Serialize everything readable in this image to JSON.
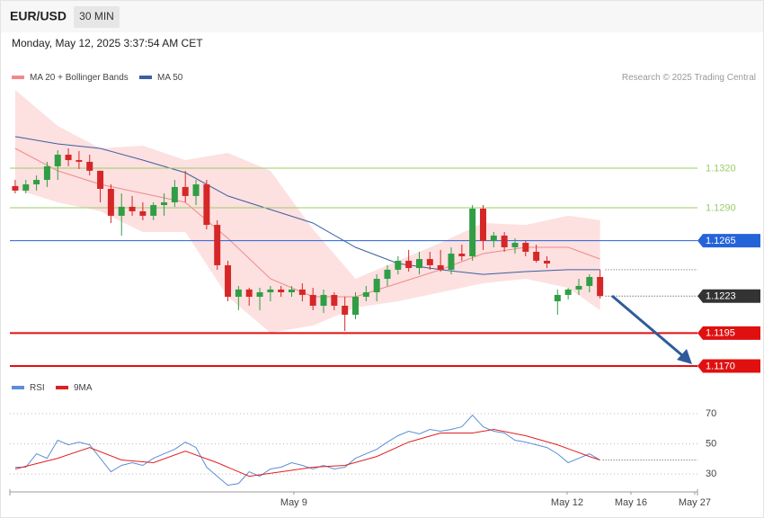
{
  "header": {
    "symbol": "EUR/USD",
    "interval": "30 MIN",
    "timestamp": "Monday, May 12, 2025 3:37:54 AM CET"
  },
  "chart_data": [
    {
      "type": "candlestick",
      "credit": "Research © 2025 Trading Central",
      "up_color": "#2f9e44",
      "down_color": "#d62728",
      "open": [
        1.13064,
        1.1303,
        1.13077,
        1.13111,
        1.13214,
        1.13302,
        1.13261,
        1.13248,
        1.1318,
        1.13043,
        1.12839,
        1.12907,
        1.12873,
        1.12839,
        1.1292,
        1.12941,
        1.13057,
        1.12989,
        1.13077,
        1.1277,
        1.12464,
        1.12225,
        1.1228,
        1.12225,
        1.12259,
        1.1228,
        1.12259,
        1.1228,
        1.12239,
        1.12157,
        1.12239,
        1.12157,
        1.12089,
        1.12225,
        1.12259,
        1.12361,
        1.1243,
        1.12498,
        1.12443,
        1.12511,
        1.12464,
        1.1243,
        1.12552,
        1.12532,
        1.12893,
        1.12648,
        1.12689,
        1.126,
        1.12634,
        1.12566,
        1.12498,
        1.12191,
        1.12239,
        1.1228,
        1.12307,
        1.12375
      ],
      "high": [
        1.13111,
        1.13111,
        1.13145,
        1.13248,
        1.13336,
        1.1335,
        1.1333,
        1.13302,
        1.1318,
        1.13077,
        1.13009,
        1.12989,
        1.12941,
        1.12941,
        1.13009,
        1.13111,
        1.1318,
        1.13111,
        1.13111,
        1.12805,
        1.12498,
        1.12307,
        1.12293,
        1.12293,
        1.12307,
        1.12307,
        1.12307,
        1.12327,
        1.12293,
        1.1228,
        1.12259,
        1.12225,
        1.12259,
        1.12307,
        1.12395,
        1.12464,
        1.12532,
        1.1258,
        1.12566,
        1.12566,
        1.1258,
        1.126,
        1.1262,
        1.1292,
        1.1292,
        1.12716,
        1.12716,
        1.12668,
        1.12648,
        1.1262,
        1.12532,
        1.1228,
        1.12293,
        1.12361,
        1.12395,
        1.1243
      ],
      "low": [
        1.13009,
        1.13009,
        1.1303,
        1.13057,
        1.13111,
        1.13214,
        1.13193,
        1.13145,
        1.12941,
        1.12784,
        1.12689,
        1.12839,
        1.12805,
        1.12805,
        1.12839,
        1.12907,
        1.12941,
        1.1292,
        1.12736,
        1.1243,
        1.12191,
        1.12123,
        1.12157,
        1.12123,
        1.12191,
        1.12225,
        1.12225,
        1.12191,
        1.12123,
        1.12102,
        1.12123,
        1.11966,
        1.12055,
        1.12191,
        1.12191,
        1.12307,
        1.12395,
        1.12416,
        1.12395,
        1.1243,
        1.12416,
        1.12395,
        1.12498,
        1.12498,
        1.1258,
        1.126,
        1.12566,
        1.12552,
        1.12532,
        1.12484,
        1.12443,
        1.12089,
        1.12205,
        1.12239,
        1.12259,
        1.12211
      ],
      "close": [
        1.1303,
        1.13077,
        1.13111,
        1.13214,
        1.13302,
        1.13261,
        1.13248,
        1.1318,
        1.13043,
        1.12839,
        1.12907,
        1.12873,
        1.12839,
        1.1292,
        1.12941,
        1.13057,
        1.12989,
        1.13077,
        1.1277,
        1.12464,
        1.12225,
        1.1228,
        1.12225,
        1.12259,
        1.1228,
        1.12259,
        1.1228,
        1.12239,
        1.12157,
        1.12239,
        1.12157,
        1.12089,
        1.12225,
        1.12259,
        1.12361,
        1.1243,
        1.12498,
        1.12443,
        1.12511,
        1.12464,
        1.1243,
        1.12552,
        1.12532,
        1.12893,
        1.12648,
        1.12689,
        1.126,
        1.12634,
        1.12566,
        1.12498,
        1.12477,
        1.12239,
        1.1228,
        1.12307,
        1.12375,
        1.1223
      ],
      "series": [
        {
          "name": "MA 20 + Bollinger Bands",
          "color": "#f08a8a",
          "band_color": "#fde0e0",
          "x": [
            0,
            4,
            8,
            12,
            16,
            20,
            24,
            28,
            32,
            36,
            40,
            44,
            48,
            52,
            55
          ],
          "values": [
            1.1335,
            1.1318,
            1.13077,
            1.13009,
            1.12941,
            1.12668,
            1.12361,
            1.12225,
            1.12225,
            1.12327,
            1.1243,
            1.12552,
            1.126,
            1.126,
            1.12511
          ],
          "upper": [
            1.13793,
            1.1352,
            1.1335,
            1.1337,
            1.13261,
            1.13316,
            1.1318,
            1.12736,
            1.12361,
            1.12498,
            1.12634,
            1.12784,
            1.1277,
            1.12839,
            1.12805
          ],
          "lower": [
            1.13043,
            1.12941,
            1.12873,
            1.12716,
            1.12716,
            1.12225,
            1.11952,
            1.12007,
            1.12143,
            1.12191,
            1.12259,
            1.12327,
            1.12361,
            1.12293,
            1.12123
          ]
        },
        {
          "name": "MA 50",
          "color": "#3c5fa0",
          "x": [
            0,
            4,
            8,
            12,
            16,
            20,
            24,
            28,
            32,
            36,
            40,
            44,
            48,
            52,
            55
          ],
          "values": [
            1.13439,
            1.13384,
            1.1335,
            1.13261,
            1.13166,
            1.12989,
            1.12886,
            1.12784,
            1.126,
            1.12477,
            1.1243,
            1.12395,
            1.12416,
            1.1243,
            1.1243
          ]
        }
      ],
      "levels": [
        {
          "value": 1.132,
          "label": "1.1320",
          "color": "#9acd66",
          "style": "solid",
          "boxed": false
        },
        {
          "value": 1.129,
          "label": "1.1290",
          "color": "#9acd66",
          "style": "solid",
          "boxed": false
        },
        {
          "value": 1.1265,
          "label": "1.1265",
          "color": "#2563d9",
          "style": "solid",
          "boxed": true
        },
        {
          "value": 1.1223,
          "label": "1.1223",
          "color": "#333333",
          "style": "dotted",
          "boxed": true
        },
        {
          "value": 1.1195,
          "label": "1.1195",
          "color": "#e01010",
          "style": "thick",
          "boxed": true
        },
        {
          "value": 1.117,
          "label": "1.1170",
          "color": "#e01010",
          "style": "thick",
          "boxed": true
        }
      ],
      "ylim": [
        1.11666,
        1.13827
      ]
    },
    {
      "type": "line",
      "series": [
        {
          "name": "RSI",
          "color": "#5b8ed6",
          "values": [
            34.5,
            34.5,
            43.4,
            40.4,
            52.4,
            49.4,
            51.2,
            49.4,
            40.4,
            31.5,
            35.7,
            37.5,
            35.7,
            40.4,
            43.4,
            46.4,
            51.2,
            47.6,
            34.5,
            28.5,
            22.5,
            23.7,
            31.5,
            28.5,
            33.3,
            34.5,
            37.5,
            35.7,
            33.3,
            35.7,
            33.3,
            34.5,
            40.4,
            43.4,
            46.4,
            51.2,
            55.4,
            58.4,
            56.6,
            59.6,
            58.4,
            59.6,
            61.3,
            69.1,
            61.3,
            58.4,
            57.2,
            52.4,
            51.2,
            49.4,
            47.6,
            43.4,
            37.5,
            40.4,
            43.4,
            39.3
          ]
        },
        {
          "name": "9MA",
          "color": "#e02020",
          "x": [
            0,
            4,
            7,
            10,
            13,
            16,
            19,
            22,
            25,
            28,
            31,
            34,
            37,
            40,
            43,
            45,
            48,
            51,
            54,
            55
          ],
          "values": [
            33.3,
            40.4,
            47.6,
            39.3,
            37.5,
            45.2,
            37.5,
            28.5,
            31.5,
            34.5,
            35.7,
            41.6,
            51.2,
            57.2,
            57.2,
            59.6,
            55.4,
            49.4,
            41.6,
            39.3
          ]
        }
      ],
      "ylim": [
        19,
        76
      ],
      "yticks": [
        30,
        50,
        70
      ],
      "grid": true,
      "xlim": [
        -0.5,
        64.16
      ],
      "xticks": [
        {
          "value": 26.2,
          "label": "May 9"
        },
        {
          "value": 51.9,
          "label": "May 12"
        },
        {
          "value": 57.9,
          "label": "May 16"
        },
        {
          "value": 63.9,
          "label": "May 27"
        }
      ]
    }
  ]
}
